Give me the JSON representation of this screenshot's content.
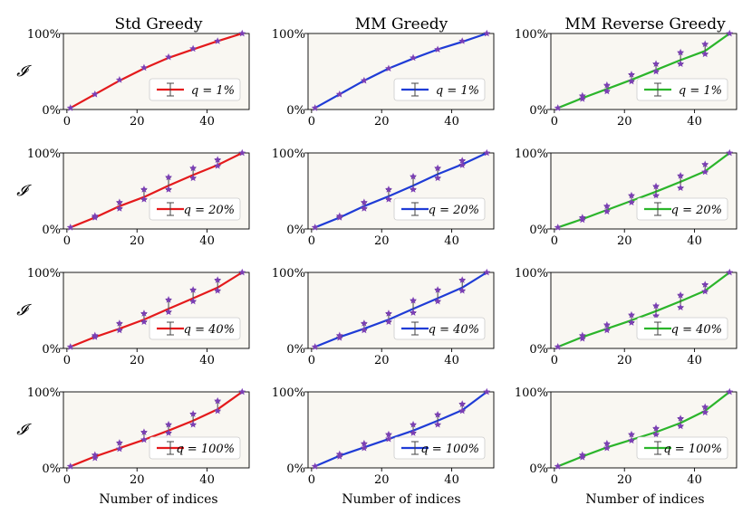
{
  "figure": {
    "column_titles": [
      "Std Greedy",
      "MM Greedy",
      "MM Reverse Greedy"
    ],
    "row_ylabel": "𝓘",
    "xlabel": "Number of indices"
  },
  "colors": {
    "std": "#e41a1c",
    "mm": "#1f3cd6",
    "reverse": "#2bb52b",
    "marker": "#7b3fb5",
    "errorbar": "#444444",
    "panel_bg": "#f9f7f2"
  },
  "chart_data": [
    {
      "type": "line",
      "title": "Std Greedy",
      "legend": "q = 1%",
      "series_color": "std",
      "xticks": [
        "0",
        "20",
        "40"
      ],
      "yticks": [
        "0%",
        "100%"
      ],
      "xlim": [
        -1,
        52
      ],
      "ylim": [
        0,
        100
      ],
      "x": [
        1,
        8,
        15,
        22,
        29,
        36,
        43,
        50
      ],
      "y": [
        2,
        20,
        38,
        54,
        68,
        79,
        90,
        100
      ],
      "marks": [
        [
          2
        ],
        [
          20
        ],
        [
          39
        ],
        [
          55
        ],
        [
          69
        ],
        [
          80
        ],
        [
          90
        ],
        [
          100
        ]
      ]
    },
    {
      "type": "line",
      "title": "MM Greedy",
      "legend": "q = 1%",
      "series_color": "mm",
      "xticks": [
        "0",
        "20",
        "40"
      ],
      "yticks": [
        "0%",
        "100%"
      ],
      "xlim": [
        -1,
        52
      ],
      "ylim": [
        0,
        100
      ],
      "x": [
        1,
        8,
        15,
        22,
        29,
        36,
        43,
        50
      ],
      "y": [
        2,
        20,
        38,
        54,
        67,
        79,
        89,
        100
      ],
      "marks": [
        [
          2
        ],
        [
          20
        ],
        [
          38
        ],
        [
          54
        ],
        [
          68
        ],
        [
          79
        ],
        [
          90
        ],
        [
          100
        ]
      ]
    },
    {
      "type": "line",
      "title": "MM Reverse Greedy",
      "legend": "q = 1%",
      "series_color": "reverse",
      "xticks": [
        "0",
        "20",
        "40"
      ],
      "yticks": [
        "0%",
        "100%"
      ],
      "xlim": [
        -1,
        52
      ],
      "ylim": [
        0,
        100
      ],
      "x": [
        1,
        8,
        15,
        22,
        29,
        36,
        43,
        50
      ],
      "y": [
        2,
        15,
        27,
        39,
        52,
        65,
        77,
        100
      ],
      "marks": [
        [
          2
        ],
        [
          14,
          18
        ],
        [
          24,
          32
        ],
        [
          37,
          46
        ],
        [
          50,
          60
        ],
        [
          60,
          75
        ],
        [
          73,
          86
        ],
        [
          100
        ]
      ]
    },
    {
      "type": "line",
      "title": "Std Greedy",
      "legend": "q = 20%",
      "series_color": "std",
      "xticks": [
        "0",
        "20",
        "40"
      ],
      "yticks": [
        "0%",
        "100%"
      ],
      "xlim": [
        -1,
        52
      ],
      "ylim": [
        0,
        100
      ],
      "x": [
        1,
        8,
        15,
        22,
        29,
        36,
        43,
        50
      ],
      "y": [
        2,
        15,
        30,
        42,
        57,
        71,
        84,
        100
      ],
      "marks": [
        [
          2
        ],
        [
          15,
          17
        ],
        [
          27,
          35
        ],
        [
          39,
          52
        ],
        [
          52,
          68
        ],
        [
          67,
          80
        ],
        [
          83,
          91
        ],
        [
          100
        ]
      ]
    },
    {
      "type": "line",
      "title": "MM Greedy",
      "legend": "q = 20%",
      "series_color": "mm",
      "xticks": [
        "0",
        "20",
        "40"
      ],
      "yticks": [
        "0%",
        "100%"
      ],
      "xlim": [
        -1,
        52
      ],
      "ylim": [
        0,
        100
      ],
      "x": [
        1,
        8,
        15,
        22,
        29,
        36,
        43,
        50
      ],
      "y": [
        2,
        15,
        30,
        43,
        57,
        72,
        85,
        100
      ],
      "marks": [
        [
          2
        ],
        [
          15,
          17
        ],
        [
          27,
          35
        ],
        [
          39,
          52
        ],
        [
          52,
          69
        ],
        [
          67,
          80
        ],
        [
          84,
          90
        ],
        [
          100
        ]
      ]
    },
    {
      "type": "line",
      "title": "MM Reverse Greedy",
      "legend": "q = 20%",
      "series_color": "reverse",
      "xticks": [
        "0",
        "20",
        "40"
      ],
      "yticks": [
        "0%",
        "100%"
      ],
      "xlim": [
        -1,
        52
      ],
      "ylim": [
        0,
        100
      ],
      "x": [
        1,
        8,
        15,
        22,
        29,
        36,
        43,
        50
      ],
      "y": [
        2,
        13,
        25,
        37,
        49,
        62,
        76,
        100
      ],
      "marks": [
        [
          2
        ],
        [
          12,
          15
        ],
        [
          23,
          30
        ],
        [
          35,
          44
        ],
        [
          44,
          56
        ],
        [
          54,
          70
        ],
        [
          75,
          85
        ],
        [
          100
        ]
      ]
    },
    {
      "type": "line",
      "title": "Std Greedy",
      "legend": "q = 40%",
      "series_color": "std",
      "xticks": [
        "0",
        "20",
        "40"
      ],
      "yticks": [
        "0%",
        "100%"
      ],
      "xlim": [
        -1,
        52
      ],
      "ylim": [
        0,
        100
      ],
      "x": [
        1,
        8,
        15,
        22,
        29,
        36,
        43,
        50
      ],
      "y": [
        2,
        15,
        26,
        38,
        52,
        66,
        80,
        100
      ],
      "marks": [
        [
          2
        ],
        [
          15,
          17
        ],
        [
          24,
          33
        ],
        [
          35,
          46
        ],
        [
          48,
          64
        ],
        [
          62,
          77
        ],
        [
          76,
          90
        ],
        [
          100
        ]
      ]
    },
    {
      "type": "line",
      "title": "MM Greedy",
      "legend": "q = 40%",
      "series_color": "mm",
      "xticks": [
        "0",
        "20",
        "40"
      ],
      "yticks": [
        "0%",
        "100%"
      ],
      "xlim": [
        -1,
        52
      ],
      "ylim": [
        0,
        100
      ],
      "x": [
        1,
        8,
        15,
        22,
        29,
        36,
        43,
        50
      ],
      "y": [
        2,
        15,
        26,
        38,
        52,
        66,
        80,
        100
      ],
      "marks": [
        [
          2
        ],
        [
          14,
          17
        ],
        [
          24,
          33
        ],
        [
          35,
          46
        ],
        [
          47,
          63
        ],
        [
          62,
          77
        ],
        [
          76,
          90
        ],
        [
          100
        ]
      ]
    },
    {
      "type": "line",
      "title": "MM Reverse Greedy",
      "legend": "q = 40%",
      "series_color": "reverse",
      "xticks": [
        "0",
        "20",
        "40"
      ],
      "yticks": [
        "0%",
        "100%"
      ],
      "xlim": [
        -1,
        52
      ],
      "ylim": [
        0,
        100
      ],
      "x": [
        1,
        8,
        15,
        22,
        29,
        36,
        43,
        50
      ],
      "y": [
        2,
        15,
        26,
        37,
        49,
        62,
        76,
        100
      ],
      "marks": [
        [
          2
        ],
        [
          13,
          17
        ],
        [
          24,
          31
        ],
        [
          34,
          44
        ],
        [
          43,
          56
        ],
        [
          54,
          70
        ],
        [
          75,
          84
        ],
        [
          100
        ]
      ]
    },
    {
      "type": "line",
      "title": "Std Greedy",
      "legend": "q = 100%",
      "series_color": "std",
      "xticks": [
        "0",
        "20",
        "40"
      ],
      "yticks": [
        "0%",
        "100%"
      ],
      "xlim": [
        -1,
        52
      ],
      "ylim": [
        0,
        100
      ],
      "x": [
        1,
        8,
        15,
        22,
        29,
        36,
        43,
        50
      ],
      "y": [
        2,
        15,
        26,
        37,
        49,
        62,
        77,
        100
      ],
      "marks": [
        [
          2
        ],
        [
          13,
          17
        ],
        [
          25,
          33
        ],
        [
          37,
          47
        ],
        [
          46,
          57
        ],
        [
          57,
          71
        ],
        [
          75,
          88
        ],
        [
          100
        ]
      ]
    },
    {
      "type": "line",
      "title": "MM Greedy",
      "legend": "q = 100%",
      "series_color": "mm",
      "xticks": [
        "0",
        "20",
        "40"
      ],
      "yticks": [
        "0%",
        "100%"
      ],
      "xlim": [
        -1,
        52
      ],
      "ylim": [
        0,
        100
      ],
      "x": [
        1,
        8,
        15,
        22,
        29,
        36,
        43,
        50
      ],
      "y": [
        2,
        16,
        27,
        38,
        49,
        62,
        76,
        100
      ],
      "marks": [
        [
          2
        ],
        [
          15,
          18
        ],
        [
          26,
          32
        ],
        [
          38,
          44
        ],
        [
          46,
          57
        ],
        [
          57,
          70
        ],
        [
          75,
          84
        ],
        [
          100
        ]
      ]
    },
    {
      "type": "line",
      "title": "MM Reverse Greedy",
      "legend": "q = 100%",
      "series_color": "reverse",
      "xticks": [
        "0",
        "20",
        "40"
      ],
      "yticks": [
        "0%",
        "100%"
      ],
      "xlim": [
        -1,
        52
      ],
      "ylim": [
        0,
        100
      ],
      "x": [
        1,
        8,
        15,
        22,
        29,
        36,
        43,
        50
      ],
      "y": [
        2,
        15,
        27,
        37,
        47,
        59,
        75,
        100
      ],
      "marks": [
        [
          2
        ],
        [
          14,
          17
        ],
        [
          26,
          32
        ],
        [
          36,
          44
        ],
        [
          44,
          52
        ],
        [
          55,
          65
        ],
        [
          73,
          80
        ],
        [
          100
        ]
      ]
    }
  ]
}
